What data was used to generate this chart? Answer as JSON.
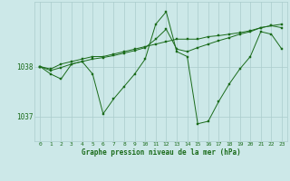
{
  "title": "Graphe pression niveau de la mer (hPa)",
  "bg_color": "#cce8e8",
  "plot_bg_color": "#cce8e8",
  "grid_color": "#aacccc",
  "line_color": "#1a6b1a",
  "marker_color": "#1a6b1a",
  "x_ticks": [
    0,
    1,
    2,
    3,
    4,
    5,
    6,
    7,
    8,
    9,
    10,
    11,
    12,
    13,
    14,
    15,
    16,
    17,
    18,
    19,
    20,
    21,
    22,
    23
  ],
  "ylim": [
    1036.5,
    1039.3
  ],
  "yticks": [
    1037,
    1038
  ],
  "series": {
    "jagged": [
      1038.0,
      1037.85,
      1037.75,
      1038.05,
      1038.1,
      1037.85,
      1037.05,
      1037.35,
      1037.6,
      1037.85,
      1038.15,
      1038.85,
      1039.1,
      1038.3,
      1038.2,
      1036.85,
      1036.9,
      1037.3,
      1037.65,
      1037.95,
      1038.2,
      1038.7,
      1038.65,
      1038.35
    ],
    "trend1": [
      1038.0,
      1037.95,
      1038.05,
      1038.1,
      1038.15,
      1038.2,
      1038.2,
      1038.25,
      1038.3,
      1038.35,
      1038.4,
      1038.45,
      1038.5,
      1038.55,
      1038.55,
      1038.55,
      1038.6,
      1038.62,
      1038.65,
      1038.68,
      1038.72,
      1038.78,
      1038.82,
      1038.85
    ],
    "trend2": [
      1038.0,
      1037.92,
      1037.98,
      1038.05,
      1038.1,
      1038.15,
      1038.18,
      1038.22,
      1038.27,
      1038.32,
      1038.38,
      1038.55,
      1038.75,
      1038.35,
      1038.3,
      1038.38,
      1038.45,
      1038.52,
      1038.58,
      1038.65,
      1038.7,
      1038.78,
      1038.82,
      1038.78
    ]
  }
}
